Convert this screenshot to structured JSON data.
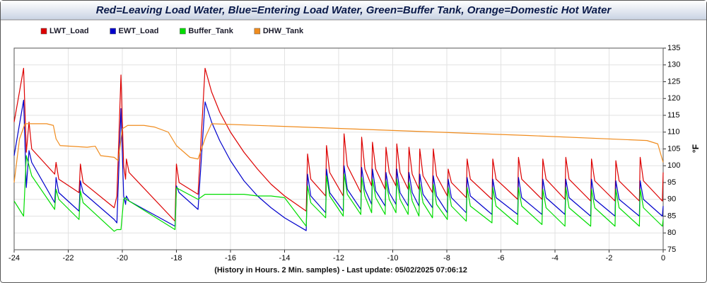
{
  "chart_data": {
    "type": "line",
    "title": "Red=Leaving Load Water, Blue=Entering Load Water, Green=Buffer Tank, Orange=Domestic Hot Water",
    "x_label": "(History in Hours. 2 Min. samples) - Last update: 05/02/2025 07:06:12",
    "y_label": "°F",
    "xlim": [
      -24,
      0
    ],
    "xticks": [
      -24,
      -22,
      -20,
      -18,
      -16,
      -14,
      -12,
      -10,
      -8,
      -6,
      -4,
      -2,
      0
    ],
    "ylim": [
      75,
      135
    ],
    "yticks": [
      75,
      80,
      85,
      90,
      95,
      100,
      105,
      110,
      115,
      120,
      125,
      130,
      135
    ],
    "y_axis_side": "right",
    "grid": true,
    "legend": "top-left",
    "series": [
      {
        "name": "LWT_Load",
        "color": "#dd0000",
        "x": [
          -24,
          -23.65,
          -23.55,
          -23.45,
          -23.35,
          -22.5,
          -22.45,
          -22.35,
          -21.6,
          -21.55,
          -21.45,
          -20.3,
          -20.2,
          -20.05,
          -19.95,
          -19.88,
          -19.85,
          -19.75,
          -18.05,
          -18.0,
          -17.9,
          -17.2,
          -16.94,
          -16.7,
          -16.4,
          -16.0,
          -15.5,
          -15.0,
          -14.5,
          -14.0,
          -13.2,
          -13.15,
          -13.03,
          -12.48,
          -12.45,
          -12.33,
          -11.83,
          -11.8,
          -11.68,
          -11.18,
          -11.15,
          -11.03,
          -10.78,
          -10.75,
          -10.63,
          -10.28,
          -10.25,
          -10.13,
          -9.88,
          -9.85,
          -9.73,
          -9.43,
          -9.4,
          -9.28,
          -9.03,
          -9.0,
          -8.88,
          -8.53,
          -8.5,
          -8.38,
          -7.98,
          -7.95,
          -7.83,
          -7.28,
          -7.25,
          -7.13,
          -6.33,
          -6.3,
          -6.18,
          -5.38,
          -5.35,
          -5.23,
          -4.48,
          -4.45,
          -4.33,
          -3.63,
          -3.6,
          -3.48,
          -2.68,
          -2.65,
          -2.53,
          -1.78,
          -1.75,
          -1.63,
          -0.88,
          -0.85,
          -0.73,
          -0.03,
          0
        ],
        "values": [
          113,
          129,
          104,
          113,
          105,
          97.5,
          101,
          96,
          92,
          100.5,
          95,
          87.5,
          91,
          127,
          100,
          96,
          102,
          98,
          83.5,
          100.5,
          95,
          91.5,
          129,
          122,
          116,
          110,
          104,
          99,
          94.5,
          91,
          86.5,
          103.5,
          96,
          91,
          106,
          98,
          91,
          109.5,
          100,
          92,
          108.5,
          99,
          94,
          107,
          99,
          93,
          105.5,
          98,
          94,
          106.5,
          98,
          93,
          105.5,
          97.5,
          93,
          105,
          97,
          92,
          105,
          97,
          91,
          99,
          95,
          90.5,
          102,
          96,
          90,
          102,
          96,
          90,
          102.5,
          96,
          90,
          102,
          96,
          90,
          102.5,
          96,
          89.5,
          102,
          95.5,
          89.5,
          101.5,
          95.5,
          89.5,
          102.5,
          95.5,
          89.5,
          98
        ]
      },
      {
        "name": "EWT_Load",
        "color": "#0000cc",
        "x": [
          -24,
          -23.65,
          -23.55,
          -23.45,
          -23.35,
          -22.5,
          -22.45,
          -22.35,
          -21.6,
          -21.55,
          -21.45,
          -20.3,
          -20.2,
          -20.05,
          -19.95,
          -19.88,
          -19.85,
          -19.75,
          -18.05,
          -18.0,
          -17.9,
          -17.2,
          -16.94,
          -16.7,
          -16.4,
          -16.0,
          -15.5,
          -15.0,
          -14.5,
          -14.0,
          -13.2,
          -13.15,
          -13.03,
          -12.48,
          -12.45,
          -12.33,
          -11.83,
          -11.8,
          -11.68,
          -11.18,
          -11.15,
          -11.03,
          -10.78,
          -10.75,
          -10.63,
          -10.28,
          -10.25,
          -10.13,
          -9.88,
          -9.85,
          -9.73,
          -9.43,
          -9.4,
          -9.28,
          -9.03,
          -9.0,
          -8.88,
          -8.53,
          -8.5,
          -8.38,
          -7.98,
          -7.95,
          -7.83,
          -7.28,
          -7.25,
          -7.13,
          -6.33,
          -6.3,
          -6.18,
          -5.38,
          -5.35,
          -5.23,
          -4.48,
          -4.45,
          -4.33,
          -3.63,
          -3.6,
          -3.48,
          -2.68,
          -2.65,
          -2.53,
          -1.78,
          -1.75,
          -1.63,
          -0.88,
          -0.85,
          -0.73,
          -0.03,
          0
        ],
        "values": [
          103,
          119.5,
          93.5,
          104.5,
          101,
          89,
          96.5,
          92,
          86.5,
          95.5,
          92,
          84,
          83,
          117,
          91,
          88.5,
          91,
          89.5,
          82,
          94,
          92,
          87,
          119,
          113,
          107.5,
          101.5,
          95.5,
          91,
          87.5,
          84.5,
          80.7,
          97.5,
          91,
          86,
          99,
          92,
          86.5,
          100,
          93,
          87,
          99.5,
          93,
          88.5,
          99,
          92.5,
          88,
          98,
          92,
          88.5,
          99,
          92,
          88,
          98,
          92,
          88,
          97.5,
          91.5,
          87.5,
          97,
          91,
          86,
          96,
          90.5,
          86,
          96.5,
          91,
          85.5,
          96,
          90.5,
          85.5,
          96.5,
          90.5,
          85.5,
          96,
          90.5,
          85.5,
          96,
          90.5,
          85,
          96,
          90,
          85,
          95.5,
          90,
          85,
          95.5,
          90,
          85,
          88
        ]
      },
      {
        "name": "Buffer_Tank",
        "color": "#00dd00",
        "x": [
          -24,
          -23.65,
          -23.55,
          -23.45,
          -23.35,
          -22.5,
          -22.45,
          -22.35,
          -21.6,
          -21.55,
          -21.45,
          -20.3,
          -20.2,
          -20.05,
          -19.95,
          -19.88,
          -19.85,
          -19.75,
          -18.05,
          -18.0,
          -17.9,
          -17.2,
          -16.94,
          -16.7,
          -16.4,
          -16.0,
          -15.5,
          -15.0,
          -14.5,
          -14.0,
          -13.2,
          -13.15,
          -13.03,
          -12.48,
          -12.45,
          -12.33,
          -11.83,
          -11.8,
          -11.68,
          -11.18,
          -11.15,
          -11.03,
          -10.78,
          -10.75,
          -10.63,
          -10.28,
          -10.25,
          -10.13,
          -9.88,
          -9.85,
          -9.73,
          -9.43,
          -9.4,
          -9.28,
          -9.03,
          -9.0,
          -8.88,
          -8.53,
          -8.5,
          -8.38,
          -7.98,
          -7.95,
          -7.83,
          -7.28,
          -7.25,
          -7.13,
          -6.33,
          -6.3,
          -6.18,
          -5.38,
          -5.35,
          -5.23,
          -4.48,
          -4.45,
          -4.33,
          -3.63,
          -3.6,
          -3.48,
          -2.68,
          -2.65,
          -2.53,
          -1.78,
          -1.75,
          -1.63,
          -0.88,
          -0.85,
          -0.73,
          -0.03,
          0
        ],
        "values": [
          89.5,
          85,
          103,
          100,
          97,
          87,
          93,
          90,
          84,
          92.5,
          89,
          80.5,
          81,
          81,
          90,
          90.5,
          90,
          89.5,
          81,
          93.5,
          93,
          90,
          91.5,
          91.5,
          91.5,
          91.5,
          91.5,
          91,
          91,
          90.5,
          82,
          94,
          89,
          84.5,
          97,
          91,
          85,
          97.5,
          91.5,
          85.5,
          96.5,
          91,
          86,
          96,
          90.5,
          85.5,
          95.5,
          90,
          86,
          96,
          90,
          85.5,
          95,
          89.5,
          85,
          94.5,
          89,
          84.5,
          94.5,
          88.5,
          84,
          93.5,
          88,
          83.5,
          93.5,
          88,
          83,
          93.5,
          88,
          82.5,
          93.5,
          88,
          82.5,
          93,
          87.5,
          82,
          93.5,
          87.5,
          82,
          93,
          87.5,
          82,
          93,
          87.5,
          82,
          93,
          87.5,
          82,
          84
        ]
      },
      {
        "name": "DHW_Tank",
        "color": "#f08c1e",
        "x": [
          -24,
          -23.8,
          -23.6,
          -22.8,
          -22.55,
          -22.45,
          -22.3,
          -21.3,
          -21.0,
          -20.8,
          -20.3,
          -20.15,
          -20.0,
          -19.8,
          -19.2,
          -18.8,
          -18.3,
          -18.0,
          -17.5,
          -17.2,
          -16.9,
          -16.7,
          -10,
          -5,
          -0.6,
          -0.2,
          0
        ],
        "values": [
          95,
          108,
          112.5,
          112.5,
          112,
          108,
          106,
          105.5,
          105.8,
          103,
          102.5,
          101.5,
          111,
          112,
          112,
          111.5,
          110,
          106,
          102.5,
          102,
          109,
          112.5,
          110.5,
          109,
          107.5,
          106.5,
          101
        ]
      }
    ]
  }
}
